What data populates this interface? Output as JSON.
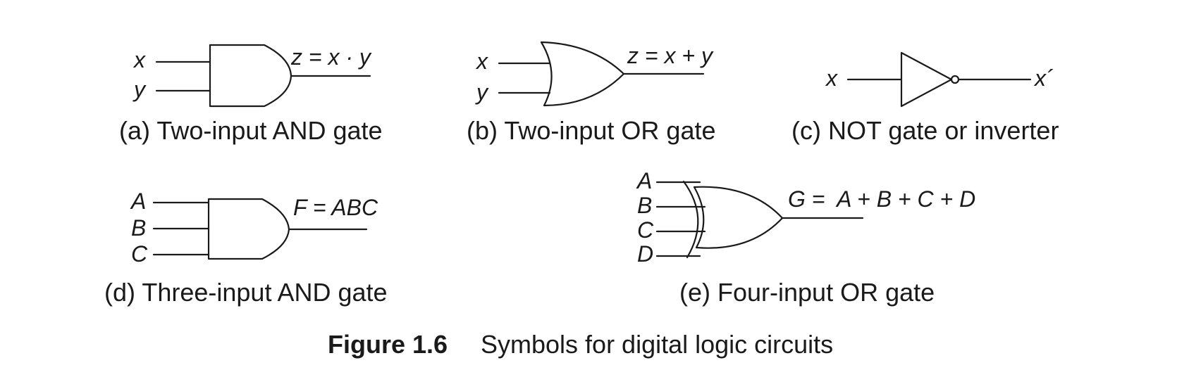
{
  "gates": {
    "a": {
      "inputs": [
        "x",
        "y"
      ],
      "output": "z = x · y",
      "caption": "(a) Two-input AND gate"
    },
    "b": {
      "inputs": [
        "x",
        "y"
      ],
      "output": "z = x + y",
      "caption": "(b) Two-input OR gate"
    },
    "c": {
      "input": "x",
      "output": "x´",
      "caption": "(c) NOT gate or inverter"
    },
    "d": {
      "inputs": [
        "A",
        "B",
        "C"
      ],
      "output": "F = ABC",
      "caption": "(d) Three-input AND gate"
    },
    "e": {
      "inputs": [
        "A",
        "B",
        "C",
        "D"
      ],
      "output": "G =  A + B + C + D",
      "caption": "(e) Four-input OR gate"
    }
  },
  "figure": {
    "number": "Figure 1.6",
    "title": "Symbols for digital logic circuits"
  }
}
